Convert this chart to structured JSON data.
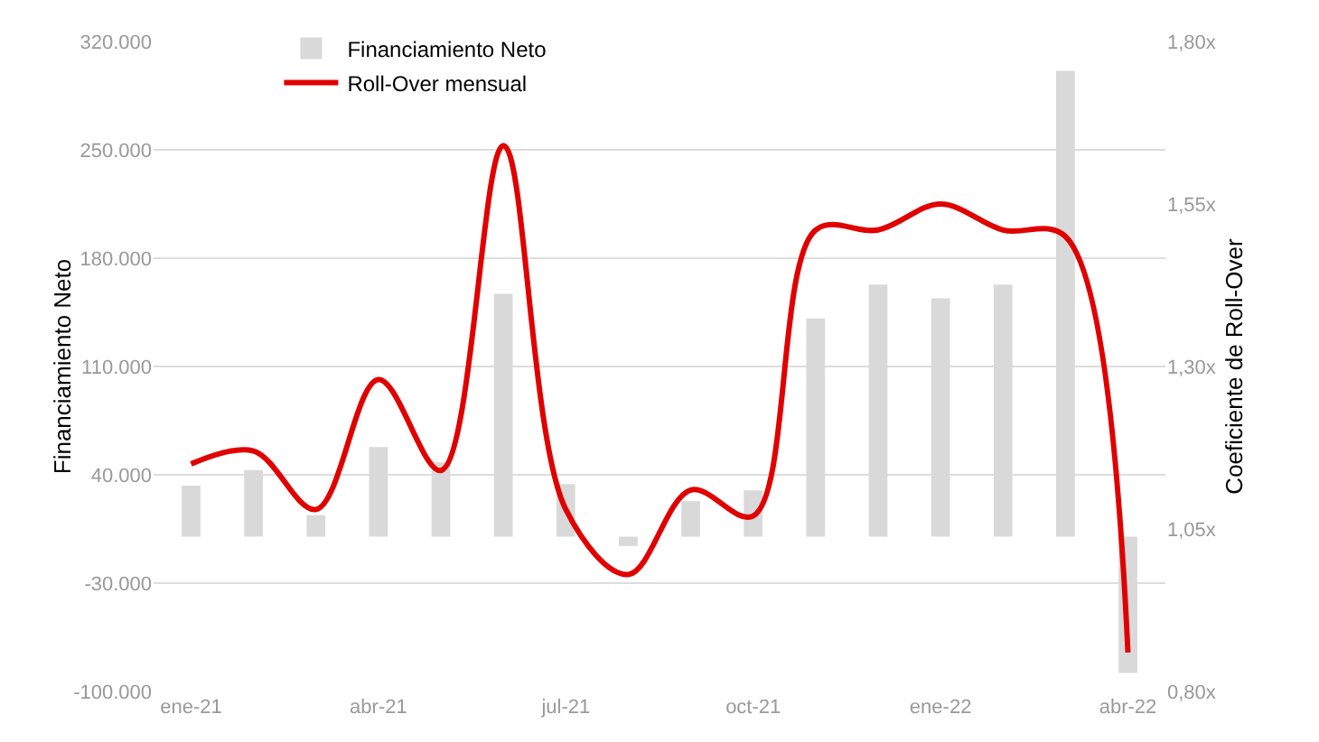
{
  "chart_data": {
    "type": "bar",
    "ylabel": "Financiamiento Neto",
    "y2label": "Coeficiente de Roll-Over",
    "categories": [
      "ene-21",
      null,
      null,
      "abr-21",
      null,
      null,
      "jul-21",
      null,
      null,
      "oct-21",
      null,
      null,
      "ene-22",
      null,
      null,
      "abr-22"
    ],
    "series": [
      {
        "name": "Financiamiento Neto",
        "color": "#d9d9d9",
        "values": [
          33000,
          43000,
          14000,
          58000,
          48000,
          157000,
          34000,
          -6000,
          23000,
          30000,
          141000,
          163000,
          154000,
          163000,
          301000,
          -88000
        ]
      },
      {
        "name": "Roll-Over mensual",
        "type": "line",
        "axis": "y2",
        "color": "#e00000",
        "values": [
          1.15,
          1.17,
          1.08,
          1.28,
          1.14,
          1.64,
          1.08,
          0.98,
          1.11,
          1.07,
          1.51,
          1.51,
          1.55,
          1.51,
          1.5,
          0.86
        ]
      }
    ],
    "ylim": [
      -100000,
      320000
    ],
    "yticks": [
      {
        "value": -100000,
        "label": "-100.000"
      },
      {
        "value": -30000,
        "label": "-30.000"
      },
      {
        "value": 40000,
        "label": "40.000"
      },
      {
        "value": 110000,
        "label": "110.000"
      },
      {
        "value": 180000,
        "label": "180.000"
      },
      {
        "value": 250000,
        "label": "250.000"
      },
      {
        "value": 320000,
        "label": "320.000"
      }
    ],
    "y2lim": [
      0.8,
      1.8
    ],
    "y2ticks": [
      {
        "value": 0.8,
        "label": "0,80x"
      },
      {
        "value": 1.05,
        "label": "1,05x"
      },
      {
        "value": 1.3,
        "label": "1,30x"
      },
      {
        "value": 1.55,
        "label": "1,55x"
      },
      {
        "value": 1.8,
        "label": "1,80x"
      }
    ],
    "grid": "y",
    "legend": "top"
  }
}
